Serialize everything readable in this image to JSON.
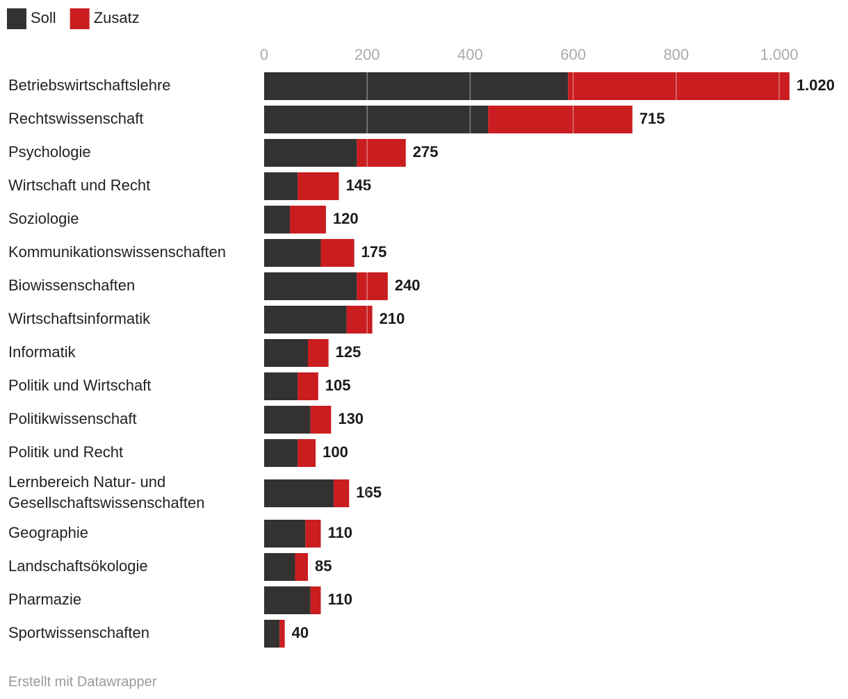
{
  "chart_data": {
    "type": "stacked_bar_horizontal",
    "categories": [
      "Betriebswirtschaftslehre",
      "Rechtswissenschaft",
      "Psychologie",
      "Wirtschaft und Recht",
      "Soziologie",
      "Kommunikationswissenschaften",
      "Biowissenschaften",
      "Wirtschaftsinformatik",
      "Informatik",
      "Politik und Wirtschaft",
      "Politikwissenschaft",
      "Politik und Recht",
      "Lernbereich Natur- und Gesellschaftswissenschaften",
      "Geographie",
      "Landschaftsökologie",
      "Pharmazie",
      "Sportwissenschaften"
    ],
    "series": [
      {
        "name": "Soll",
        "color": "#333230",
        "values": [
          590,
          435,
          180,
          65,
          50,
          110,
          180,
          160,
          85,
          65,
          90,
          65,
          135,
          80,
          60,
          90,
          30
        ]
      },
      {
        "name": "Zusatz",
        "color": "#c91d1f",
        "values": [
          430,
          280,
          95,
          80,
          70,
          65,
          60,
          50,
          40,
          40,
          40,
          35,
          30,
          30,
          25,
          20,
          10
        ]
      }
    ],
    "totals": {
      "values": [
        1020,
        715,
        275,
        145,
        120,
        175,
        240,
        210,
        125,
        105,
        130,
        100,
        165,
        110,
        85,
        110,
        40
      ],
      "value_labels": [
        "1.020",
        "715",
        "275",
        "145",
        "120",
        "175",
        "240",
        "210",
        "125",
        "105",
        "130",
        "100",
        "165",
        "110",
        "85",
        "110",
        "40"
      ]
    },
    "xlim": [
      0,
      1000
    ],
    "xticks": [
      0,
      200,
      400,
      600,
      800,
      {
        "value": 1000,
        "label": "1.000"
      }
    ],
    "grid": true,
    "legend": "top-left",
    "source": "Erstellt mit Datawrapper"
  }
}
